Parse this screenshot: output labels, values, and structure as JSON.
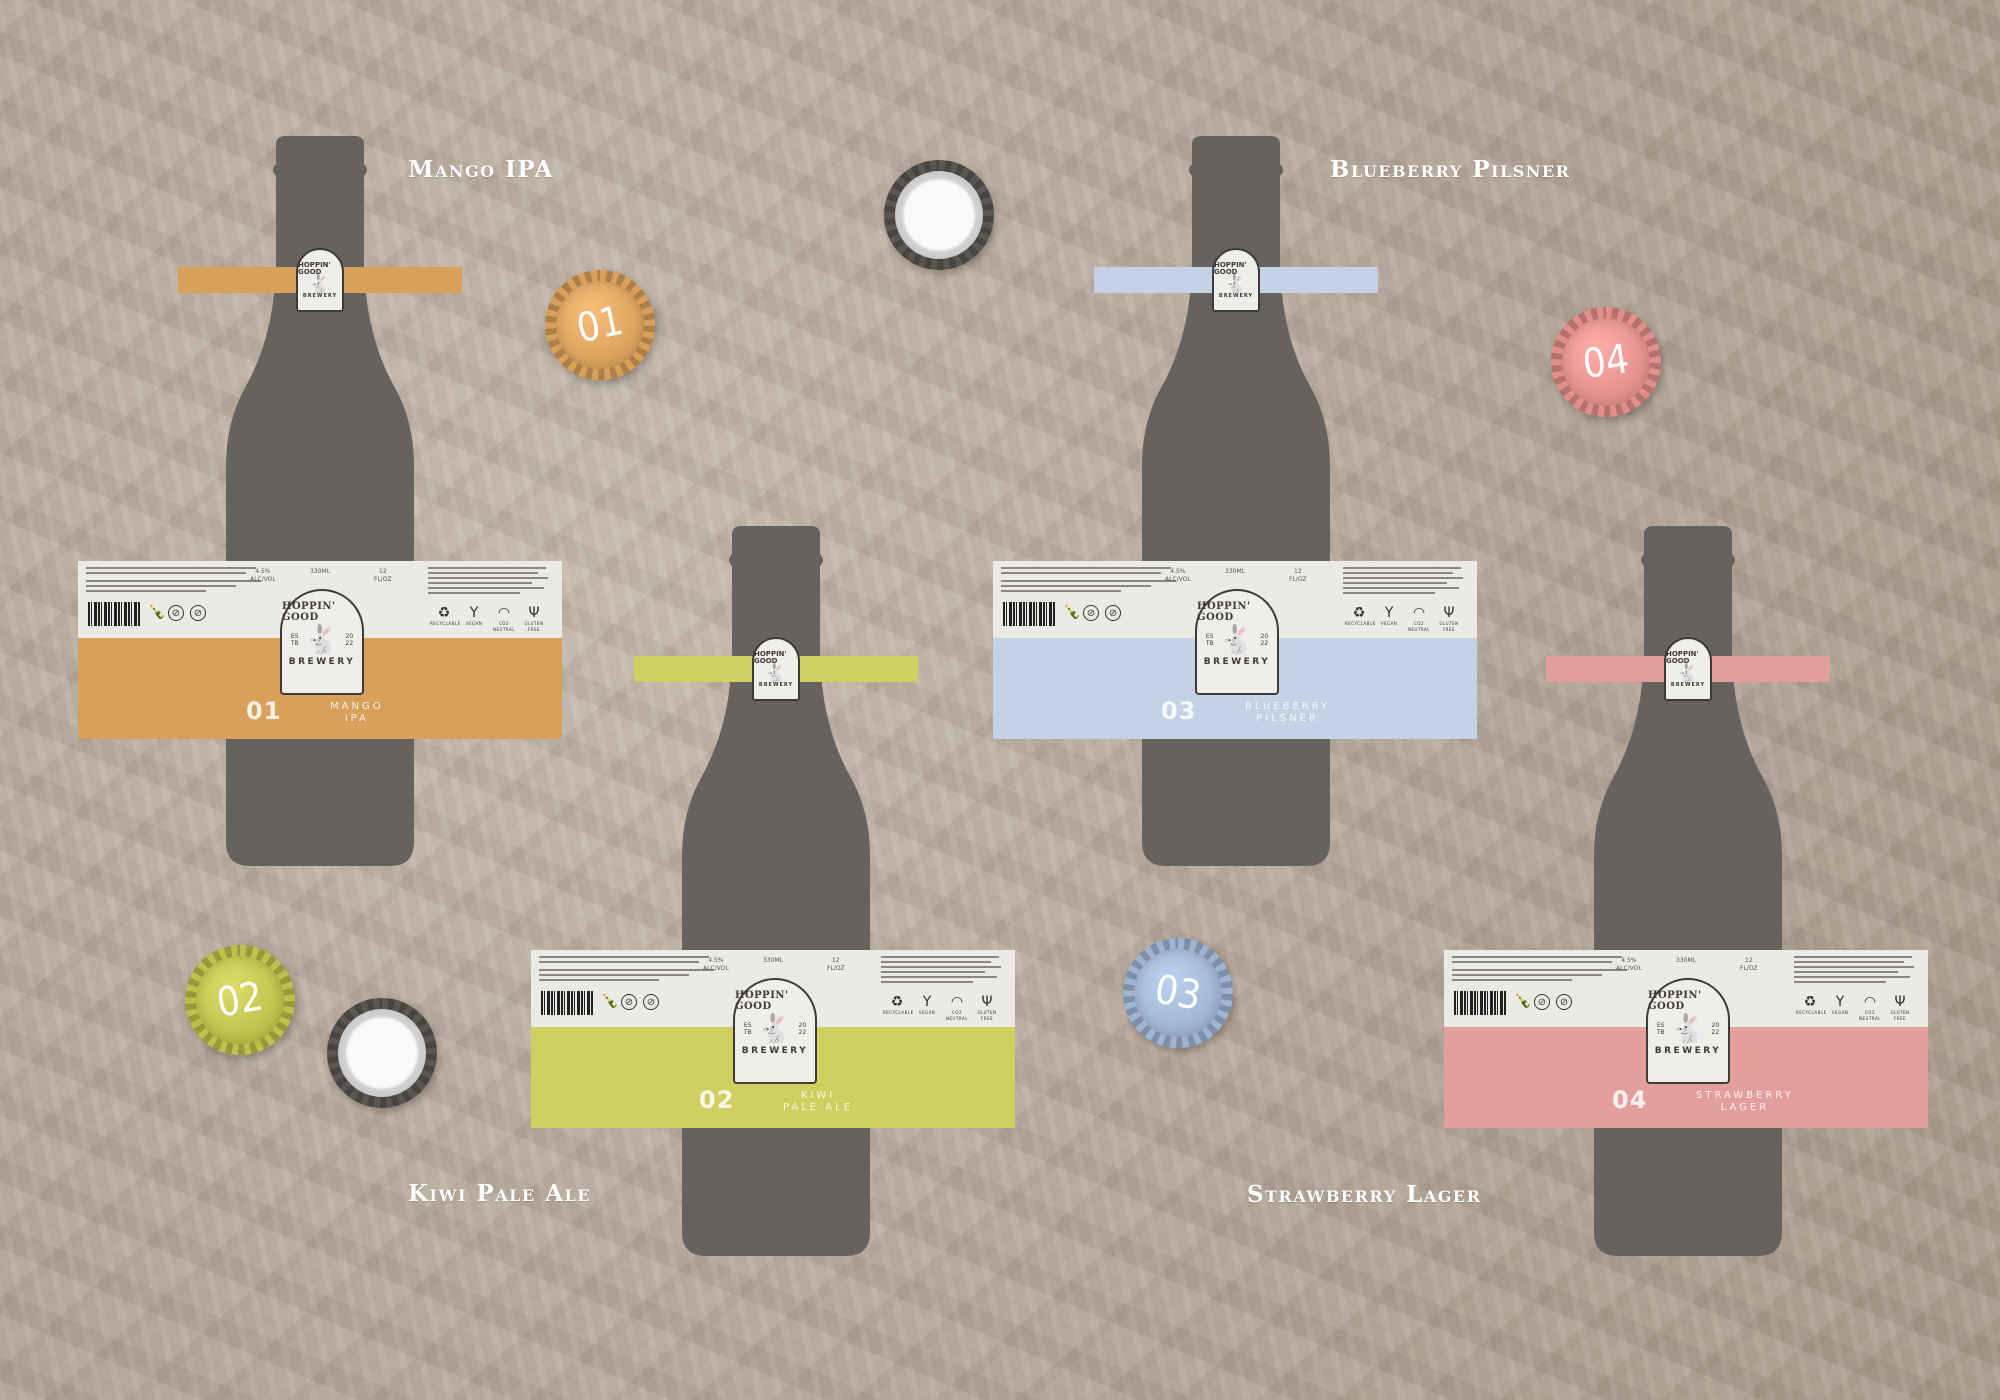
{
  "beers": [
    {
      "number": "01",
      "name": "Mango IPA",
      "label_name": "MANGO\nIPA",
      "color": "#d9a05c",
      "cap_color": "#d9a05c"
    },
    {
      "number": "02",
      "name": "Kiwi Pale Ale",
      "label_name": "KIWI\nPALE ALE",
      "color": "#cfd060",
      "cap_color": "#bdc04a"
    },
    {
      "number": "03",
      "name": "Blueberry Pilsner",
      "label_name": "BLUEBERRY\nPILSNER",
      "color": "#c3d2e4",
      "cap_color": "#9fb3d3"
    },
    {
      "number": "04",
      "name": "Strawberry Lager",
      "label_name": "STRAWBERRY\nLAGER",
      "color": "#e39f9c",
      "cap_color": "#e28f8b"
    }
  ],
  "brand": {
    "arc": "HOPPIN' GOOD",
    "bottom": "BREWERY",
    "est_left": "ES\nTB",
    "est_right": "20\n22",
    "rabbit_icon": "rabbit-icon"
  },
  "specs": {
    "abv": "4.5%\nALC/VOL",
    "volume": "330ML",
    "floz": "12\nFL/OZ"
  },
  "pictograms": [
    {
      "icon": "recycle-icon",
      "glyph": "♻",
      "label": "RECYCLABLE"
    },
    {
      "icon": "vegan-icon",
      "glyph": "Y",
      "label": "VEGAN"
    },
    {
      "icon": "co2-neutral-icon",
      "glyph": "◠",
      "label": "CO2 NEUTRAL"
    },
    {
      "icon": "gluten-free-icon",
      "glyph": "Ψ",
      "label": "GLUTEN FREE"
    }
  ],
  "colors": {
    "bottle": "#66625d",
    "label_top": "#eceae4",
    "ink": "#3f3b38"
  }
}
